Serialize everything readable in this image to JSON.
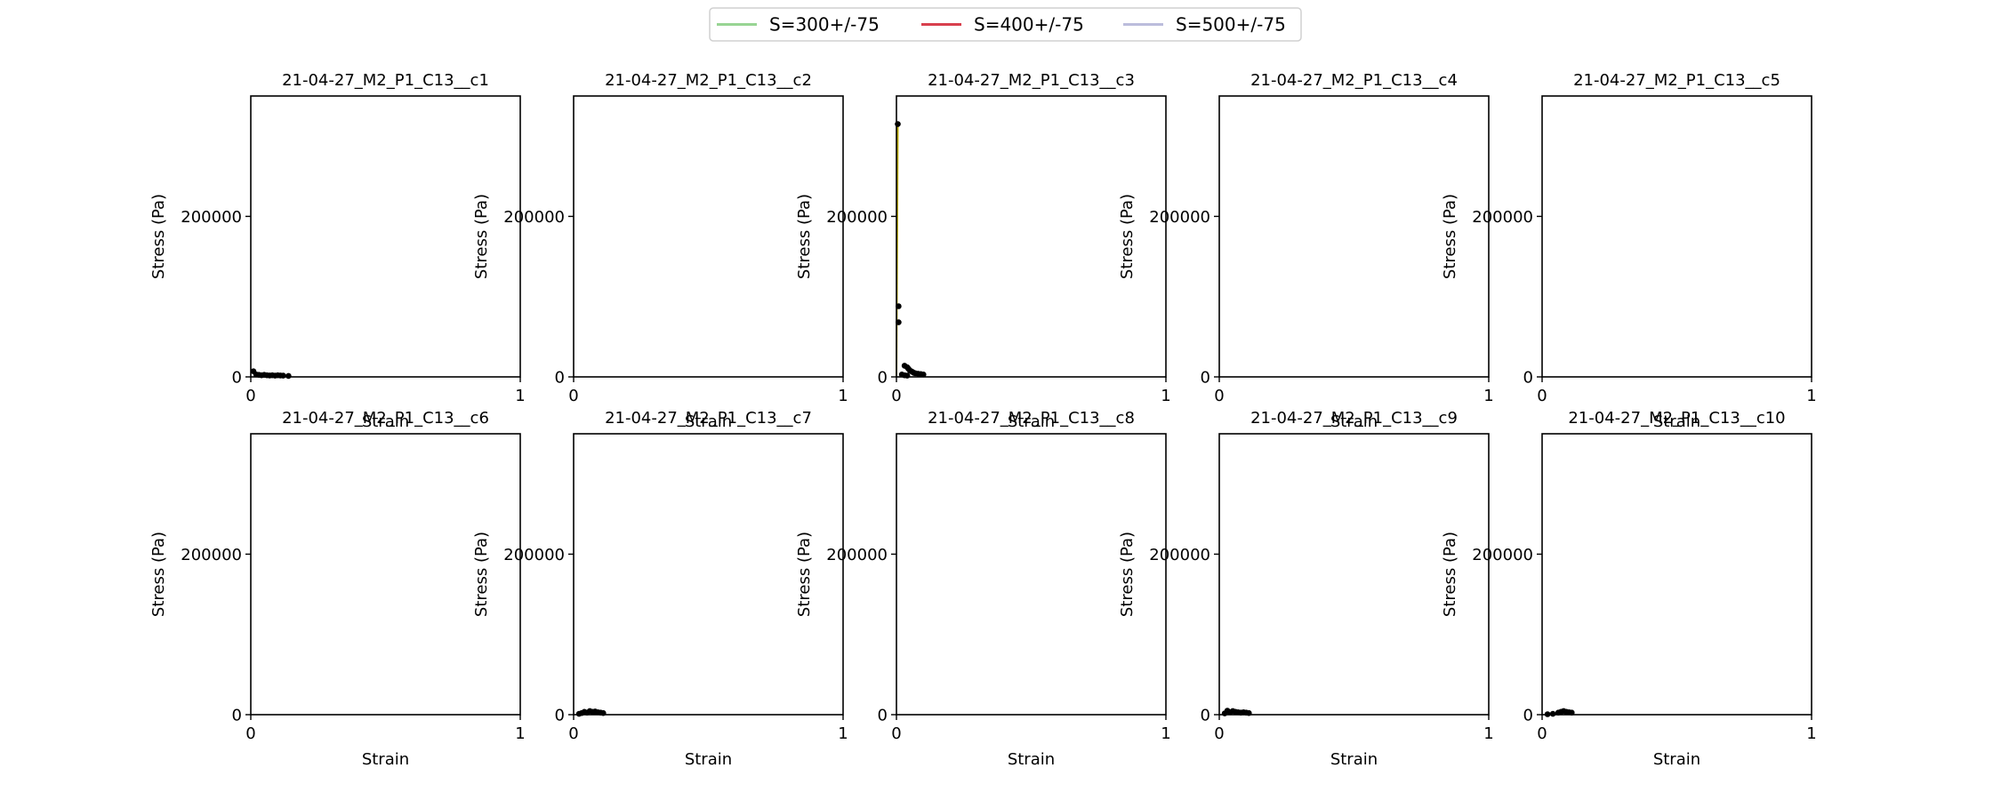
{
  "legend": {
    "placement": "top-center",
    "entries": [
      {
        "label": "S=300+/-75",
        "color": "#98d594"
      },
      {
        "label": "S=400+/-75",
        "color": "#d8404e"
      },
      {
        "label": "S=500+/-75",
        "color": "#bcbddc"
      }
    ]
  },
  "axis_text": {
    "xlabel": "Strain",
    "ylabel": "Stress (Pa)",
    "x_ticks": [
      "0",
      "1"
    ],
    "y_ticks": [
      "0",
      "200000"
    ]
  },
  "chart_data": [
    {
      "type": "scatter",
      "title": "21-04-27_M2_P1_C13__c1",
      "xlabel": "Strain",
      "ylabel": "Stress (Pa)",
      "xlim": [
        0,
        1
      ],
      "ylim": [
        0,
        350000
      ],
      "points": [
        [
          0.01,
          7000
        ],
        [
          0.02,
          3000
        ],
        [
          0.03,
          2500
        ],
        [
          0.04,
          2000
        ],
        [
          0.05,
          2500
        ],
        [
          0.06,
          2000
        ],
        [
          0.07,
          1800
        ],
        [
          0.08,
          2000
        ],
        [
          0.09,
          1500
        ],
        [
          0.1,
          2000
        ],
        [
          0.11,
          1800
        ],
        [
          0.12,
          1500
        ],
        [
          0.14,
          1200
        ]
      ],
      "lines": []
    },
    {
      "type": "scatter",
      "title": "21-04-27_M2_P1_C13__c2",
      "xlabel": "Strain",
      "ylabel": "Stress (Pa)",
      "xlim": [
        0,
        1
      ],
      "ylim": [
        0,
        350000
      ],
      "points": [],
      "lines": []
    },
    {
      "type": "scatter",
      "title": "21-04-27_M2_P1_C13__c3",
      "xlabel": "Strain",
      "ylabel": "Stress (Pa)",
      "xlim": [
        0,
        1
      ],
      "ylim": [
        0,
        350000
      ],
      "points": [
        [
          0.005,
          315000
        ],
        [
          0.008,
          88000
        ],
        [
          0.008,
          68000
        ],
        [
          0.03,
          14000
        ],
        [
          0.04,
          12000
        ],
        [
          0.045,
          10000
        ],
        [
          0.05,
          8000
        ],
        [
          0.055,
          7000
        ],
        [
          0.06,
          6000
        ],
        [
          0.065,
          5000
        ],
        [
          0.07,
          4500
        ],
        [
          0.08,
          4000
        ],
        [
          0.09,
          3500
        ],
        [
          0.1,
          3000
        ],
        [
          0.02,
          3000
        ],
        [
          0.03,
          2000
        ],
        [
          0.04,
          1500
        ]
      ],
      "lines": [
        {
          "color": "#b8a800",
          "points": [
            [
              0.0,
              0
            ],
            [
              0.005,
              315000
            ]
          ]
        }
      ]
    },
    {
      "type": "scatter",
      "title": "21-04-27_M2_P1_C13__c4",
      "xlabel": "Strain",
      "ylabel": "Stress (Pa)",
      "xlim": [
        0,
        1
      ],
      "ylim": [
        0,
        350000
      ],
      "points": [],
      "lines": []
    },
    {
      "type": "scatter",
      "title": "21-04-27_M2_P1_C13__c5",
      "xlabel": "Strain",
      "ylabel": "Stress (Pa)",
      "xlim": [
        0,
        1
      ],
      "ylim": [
        0,
        350000
      ],
      "points": [],
      "lines": []
    },
    {
      "type": "scatter",
      "title": "21-04-27_M2_P1_C13__c6",
      "xlabel": "Strain",
      "ylabel": "Stress (Pa)",
      "xlim": [
        0,
        1
      ],
      "ylim": [
        0,
        350000
      ],
      "points": [],
      "lines": []
    },
    {
      "type": "scatter",
      "title": "21-04-27_M2_P1_C13__c7",
      "xlabel": "Strain",
      "ylabel": "Stress (Pa)",
      "xlim": [
        0,
        1
      ],
      "ylim": [
        0,
        350000
      ],
      "points": [
        [
          0.02,
          1000
        ],
        [
          0.03,
          2000
        ],
        [
          0.04,
          3500
        ],
        [
          0.05,
          2500
        ],
        [
          0.06,
          4500
        ],
        [
          0.07,
          3500
        ],
        [
          0.08,
          4000
        ],
        [
          0.09,
          3000
        ],
        [
          0.1,
          2500
        ],
        [
          0.11,
          2000
        ]
      ],
      "lines": []
    },
    {
      "type": "scatter",
      "title": "21-04-27_M2_P1_C13__c8",
      "xlabel": "Strain",
      "ylabel": "Stress (Pa)",
      "xlim": [
        0,
        1
      ],
      "ylim": [
        0,
        350000
      ],
      "points": [],
      "lines": []
    },
    {
      "type": "scatter",
      "title": "21-04-27_M2_P1_C13__c9",
      "xlabel": "Strain",
      "ylabel": "Stress (Pa)",
      "xlim": [
        0,
        1
      ],
      "ylim": [
        0,
        350000
      ],
      "points": [
        [
          0.02,
          1500
        ],
        [
          0.03,
          5000
        ],
        [
          0.04,
          3000
        ],
        [
          0.05,
          4500
        ],
        [
          0.06,
          3500
        ],
        [
          0.07,
          3000
        ],
        [
          0.08,
          2500
        ],
        [
          0.09,
          3000
        ],
        [
          0.1,
          2500
        ],
        [
          0.11,
          2000
        ]
      ],
      "lines": []
    },
    {
      "type": "scatter",
      "title": "21-04-27_M2_P1_C13__c10",
      "xlabel": "Strain",
      "ylabel": "Stress (Pa)",
      "xlim": [
        0,
        1
      ],
      "ylim": [
        0,
        350000
      ],
      "points": [
        [
          0.02,
          500
        ],
        [
          0.04,
          1000
        ],
        [
          0.06,
          2500
        ],
        [
          0.07,
          3500
        ],
        [
          0.08,
          4500
        ],
        [
          0.09,
          3500
        ],
        [
          0.1,
          3000
        ],
        [
          0.11,
          2500
        ]
      ],
      "lines": []
    }
  ]
}
